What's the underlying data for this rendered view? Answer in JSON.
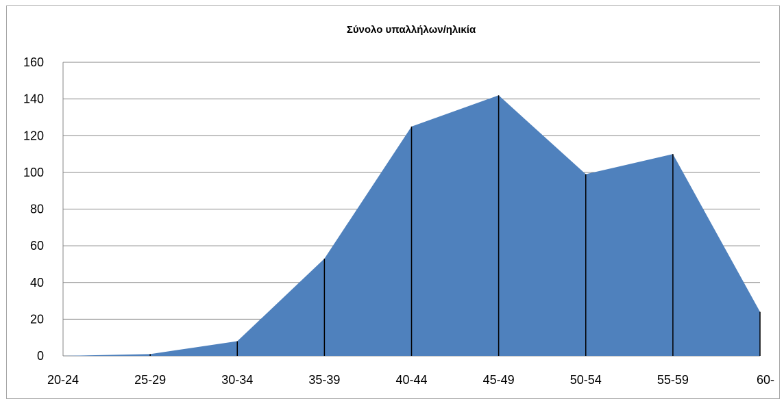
{
  "chart_data": {
    "type": "area",
    "title": "Σύνολο υπαλλήλων/ηλικία",
    "xlabel": "",
    "ylabel": "",
    "categories": [
      "20-24",
      "25-29",
      "30-34",
      "35-39",
      "40-44",
      "45-49",
      "50-54",
      "55-59",
      "60-"
    ],
    "values": [
      0,
      1,
      8,
      53,
      125,
      142,
      99,
      110,
      24
    ],
    "ylim": [
      0,
      160
    ],
    "yticks": [
      0,
      20,
      40,
      60,
      80,
      100,
      120,
      140,
      160
    ],
    "grid": true,
    "legend": "none",
    "colors": {
      "fill": "#4f81bd",
      "grid": "#868686",
      "drop_line": "#000000"
    }
  }
}
